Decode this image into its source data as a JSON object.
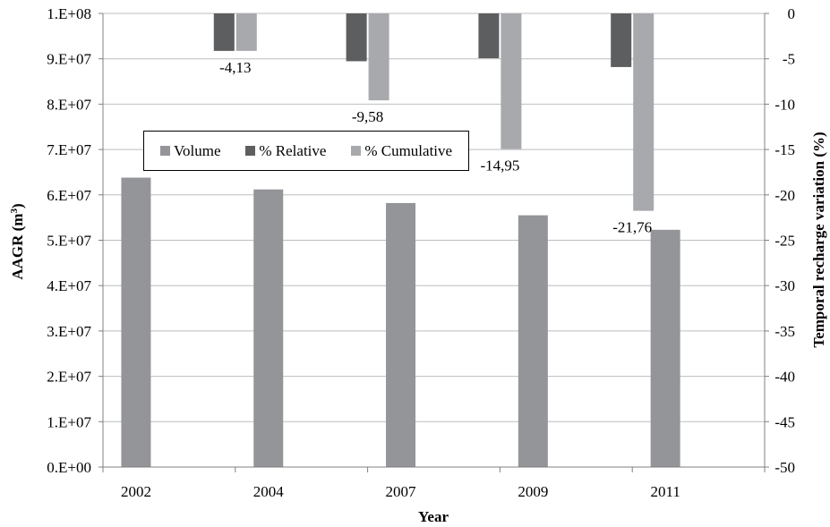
{
  "chart_data": {
    "type": "bar",
    "xlabel": "Year",
    "ylabel_left": "AAGR (m",
    "ylabel_left_sup": "3",
    "ylabel_left_close": ")",
    "ylabel_right": "Temporal recharge variation (%)",
    "ylim_left": [
      0,
      100000000
    ],
    "ylim_right": [
      -50,
      0
    ],
    "left_ticks": [
      "0.E+00",
      "1.E+07",
      "2.E+07",
      "3.E+07",
      "4.E+07",
      "5.E+07",
      "6.E+07",
      "7.E+07",
      "8.E+07",
      "9.E+07",
      "1.E+08"
    ],
    "right_ticks": [
      "0",
      "-5",
      "-10",
      "-15",
      "-20",
      "-25",
      "-30",
      "-35",
      "-40",
      "-45",
      "-50"
    ],
    "categories": [
      "2002",
      "2004",
      "2007",
      "2009",
      "2011"
    ],
    "volume": {
      "name": "Volume",
      "color": "#939598",
      "values": [
        63800000,
        61200000,
        58200000,
        55500000,
        52300000
      ]
    },
    "relative": {
      "name": "% Relative",
      "color": "#5d5e60",
      "values": [
        -4.13,
        -5.27,
        -4.94,
        -5.91
      ]
    },
    "cumulative": {
      "name": "% Cumulative",
      "color": "#a7a9ac",
      "values": [
        -4.13,
        -9.58,
        -14.95,
        -21.76
      ],
      "labels": [
        "-4,13",
        "-9,58",
        "-14,95",
        "-21,76"
      ]
    },
    "grid": true,
    "legend_position": "upper-left"
  }
}
